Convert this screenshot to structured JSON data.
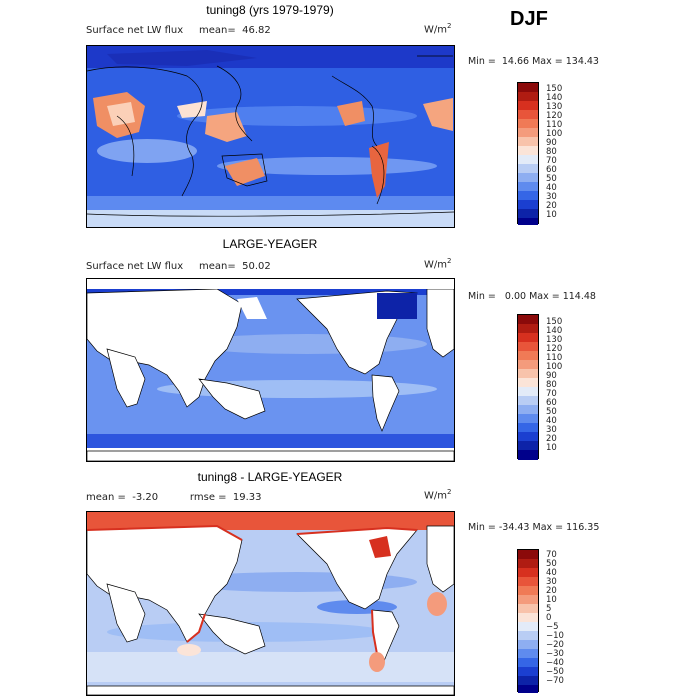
{
  "season": "DJF",
  "colors": {
    "dark_blue": "#00008b",
    "mid_blue": "#2e5be6",
    "light_blue": "#9fbef5",
    "pale": "#e9edf6",
    "orange": "#f08a5b",
    "red": "#d7301f",
    "dark_red": "#8b0000"
  },
  "panels": [
    {
      "title": "tuning8 (yrs 1979-1979)",
      "subtitle": "Surface net LW flux     mean=  46.82",
      "units": "W/m",
      "units_sup": "2",
      "minmax": "Min =  14.66 Max = 134.43",
      "colorbar_labels": [
        "150",
        "140",
        "130",
        "120",
        "110",
        "100",
        "90",
        "80",
        "70",
        "60",
        "50",
        "40",
        "30",
        "20",
        "10"
      ]
    },
    {
      "title": "LARGE-YEAGER",
      "subtitle": "Surface net LW flux     mean=  50.02",
      "units": "W/m",
      "units_sup": "2",
      "minmax": "Min =   0.00 Max = 114.48",
      "colorbar_labels": [
        "150",
        "140",
        "130",
        "120",
        "110",
        "100",
        "90",
        "80",
        "70",
        "60",
        "50",
        "40",
        "30",
        "20",
        "10"
      ]
    },
    {
      "title": "tuning8 - LARGE-YEAGER",
      "subtitle": "mean =  -3.20          rmse =  19.33",
      "units": "W/m",
      "units_sup": "2",
      "minmax": "Min = -34.43 Max = 116.35",
      "colorbar_labels": [
        "70",
        "50",
        "40",
        "30",
        "20",
        "10",
        "5",
        "0",
        "−5",
        "−10",
        "−20",
        "−30",
        "−40",
        "−50",
        "−70"
      ]
    }
  ]
}
